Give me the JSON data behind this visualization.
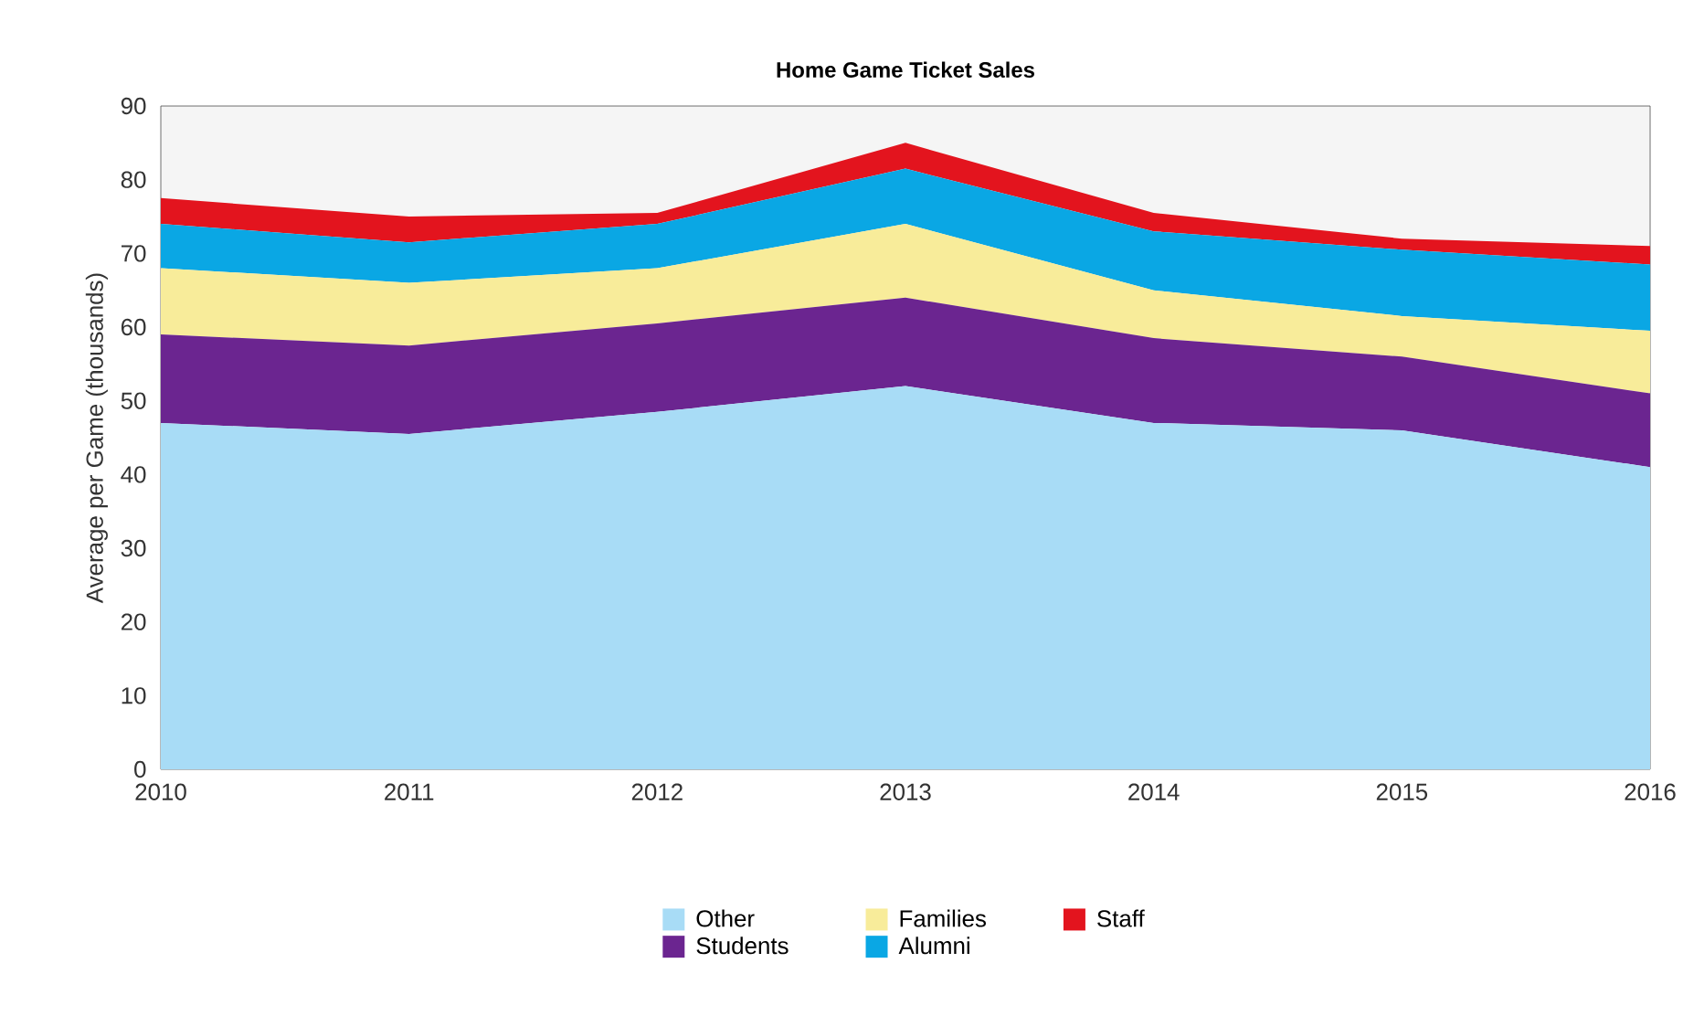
{
  "chart_data": {
    "type": "area",
    "stacked": true,
    "title": "**Home Game Ticket Sales**",
    "ylabel": "Average per Game (thousands)",
    "x": [
      2010,
      2011,
      2012,
      2013,
      2014,
      2015,
      2016
    ],
    "xlim": [
      2010,
      2016
    ],
    "xticks": [
      2010,
      2011,
      2012,
      2013,
      2014,
      2015,
      2016
    ],
    "ylim": [
      0,
      90
    ],
    "yticks": [
      0,
      10,
      20,
      30,
      40,
      50,
      60,
      70,
      80,
      90
    ],
    "grid": false,
    "legend": "bottom",
    "series": [
      {
        "name": "Other",
        "color": "#a8dcf6",
        "values": [
          47,
          45.5,
          48.5,
          52,
          47,
          46,
          41
        ]
      },
      {
        "name": "Students",
        "color": "#6b2590",
        "values": [
          12,
          12,
          12,
          12,
          11.5,
          10,
          10
        ]
      },
      {
        "name": "Families",
        "color": "#f8ec9a",
        "values": [
          9,
          8.5,
          7.5,
          10,
          6.5,
          5.5,
          8.5
        ]
      },
      {
        "name": "Alumni",
        "color": "#0aa7e4",
        "values": [
          6,
          5.5,
          6,
          7.5,
          8,
          9,
          9
        ]
      },
      {
        "name": "Staff",
        "color": "#e3141e",
        "values": [
          3.5,
          3.5,
          1.5,
          3.5,
          2.5,
          1.5,
          2.5
        ]
      }
    ]
  }
}
